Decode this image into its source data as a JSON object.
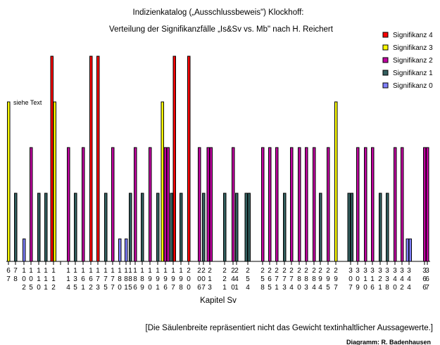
{
  "chart_data": {
    "type": "bar",
    "title": "Indizienkatalog („Ausschlussbeweis\") Klockhoff:",
    "subtitle": "Verteilung der Signifikanzfälle „Is&Sv  vs.  Mb\" nach H. Reichert",
    "xlabel": "Kapitel Sv",
    "ylabel": "",
    "ylim": [
      0,
      4
    ],
    "grid": false,
    "legend_position": "top-right",
    "annotation": "siehe Text",
    "footnote": "[Die Säulenbreite repräsentiert nicht das Gewicht textinhaltlicher Aussagewerte.]",
    "credit": "Diagramm: R. Badenhausen",
    "legend": [
      {
        "level": 4,
        "label": "Signifikanz 4",
        "color": "#ff0000"
      },
      {
        "level": 3,
        "label": "Signifikanz 3",
        "color": "#ffff00"
      },
      {
        "level": 2,
        "label": "Signifikanz 2",
        "color": "#c000a0"
      },
      {
        "level": 1,
        "label": "Signifikanz 1",
        "color": "#336060"
      },
      {
        "level": 0,
        "label": "Signifikanz 0",
        "color": "#8080ff"
      }
    ],
    "categories": [
      {
        "label": "67",
        "bars": [
          3
        ]
      },
      {
        "label": "78",
        "bars": [
          1
        ]
      },
      {
        "label": "102",
        "bars": [
          0
        ]
      },
      {
        "label": "105",
        "bars": [
          2
        ]
      },
      {
        "label": "110",
        "bars": [
          1
        ]
      },
      {
        "label": "111",
        "bars": [
          1
        ]
      },
      {
        "label": "112",
        "bars": [
          4,
          3
        ]
      },
      {
        "label": "",
        "bars": []
      },
      {
        "label": "114",
        "bars": [
          2
        ]
      },
      {
        "label": "135",
        "bars": [
          1
        ]
      },
      {
        "label": "161",
        "bars": [
          2
        ]
      },
      {
        "label": "162",
        "bars": [
          4
        ]
      },
      {
        "label": "173",
        "bars": [
          4
        ]
      },
      {
        "label": "175",
        "bars": [
          1
        ]
      },
      {
        "label": "177",
        "bars": [
          2
        ]
      },
      {
        "label": "180",
        "bars": [
          0
        ]
      },
      {
        "label": "181",
        "bars": [
          0
        ]
      },
      {
        "label": "185",
        "bars": [
          1
        ]
      },
      {
        "label": "186",
        "bars": [
          2
        ]
      },
      {
        "label": "189",
        "bars": [
          1
        ]
      },
      {
        "label": "190",
        "bars": [
          2
        ]
      },
      {
        "label": "191",
        "bars": [
          1
        ]
      },
      {
        "label": "196",
        "bars": [
          3,
          2,
          2
        ]
      },
      {
        "label": "197",
        "bars": [
          1,
          4
        ]
      },
      {
        "label": "198",
        "bars": [
          1
        ]
      },
      {
        "label": "200",
        "bars": [
          4
        ]
      },
      {
        "label": "206",
        "bars": [
          2
        ]
      },
      {
        "label": "207",
        "bars": [
          1
        ]
      },
      {
        "label": "213",
        "bars": [
          2,
          2
        ]
      },
      {
        "label": "221",
        "bars": [
          1
        ]
      },
      {
        "label": "240",
        "bars": [
          2
        ]
      },
      {
        "label": "241",
        "bars": [
          1
        ]
      },
      {
        "label": "254",
        "bars": [
          1,
          1
        ]
      },
      {
        "label": "258",
        "bars": [
          2
        ]
      },
      {
        "label": "265",
        "bars": [
          2
        ]
      },
      {
        "label": "271",
        "bars": [
          2
        ]
      },
      {
        "label": "273",
        "bars": [
          1
        ]
      },
      {
        "label": "274",
        "bars": [
          2
        ]
      },
      {
        "label": "280",
        "bars": [
          2
        ]
      },
      {
        "label": "283",
        "bars": [
          2
        ]
      },
      {
        "label": "284",
        "bars": [
          2
        ]
      },
      {
        "label": "294",
        "bars": [
          1
        ]
      },
      {
        "label": "295",
        "bars": [
          2
        ]
      },
      {
        "label": "297",
        "bars": [
          3
        ]
      },
      {
        "label": "307",
        "bars": [
          1,
          1
        ]
      },
      {
        "label": "309",
        "bars": [
          2
        ]
      },
      {
        "label": "310",
        "bars": [
          2
        ]
      },
      {
        "label": "316",
        "bars": [
          2
        ]
      },
      {
        "label": "321",
        "bars": [
          1
        ]
      },
      {
        "label": "338",
        "bars": [
          1
        ]
      },
      {
        "label": "340",
        "bars": [
          2
        ]
      },
      {
        "label": "342",
        "bars": [
          2
        ]
      },
      {
        "label": "344",
        "bars": [
          0,
          0
        ]
      },
      {
        "label": "366",
        "bars": [
          2
        ]
      },
      {
        "label": "367",
        "bars": [
          2
        ]
      }
    ]
  }
}
